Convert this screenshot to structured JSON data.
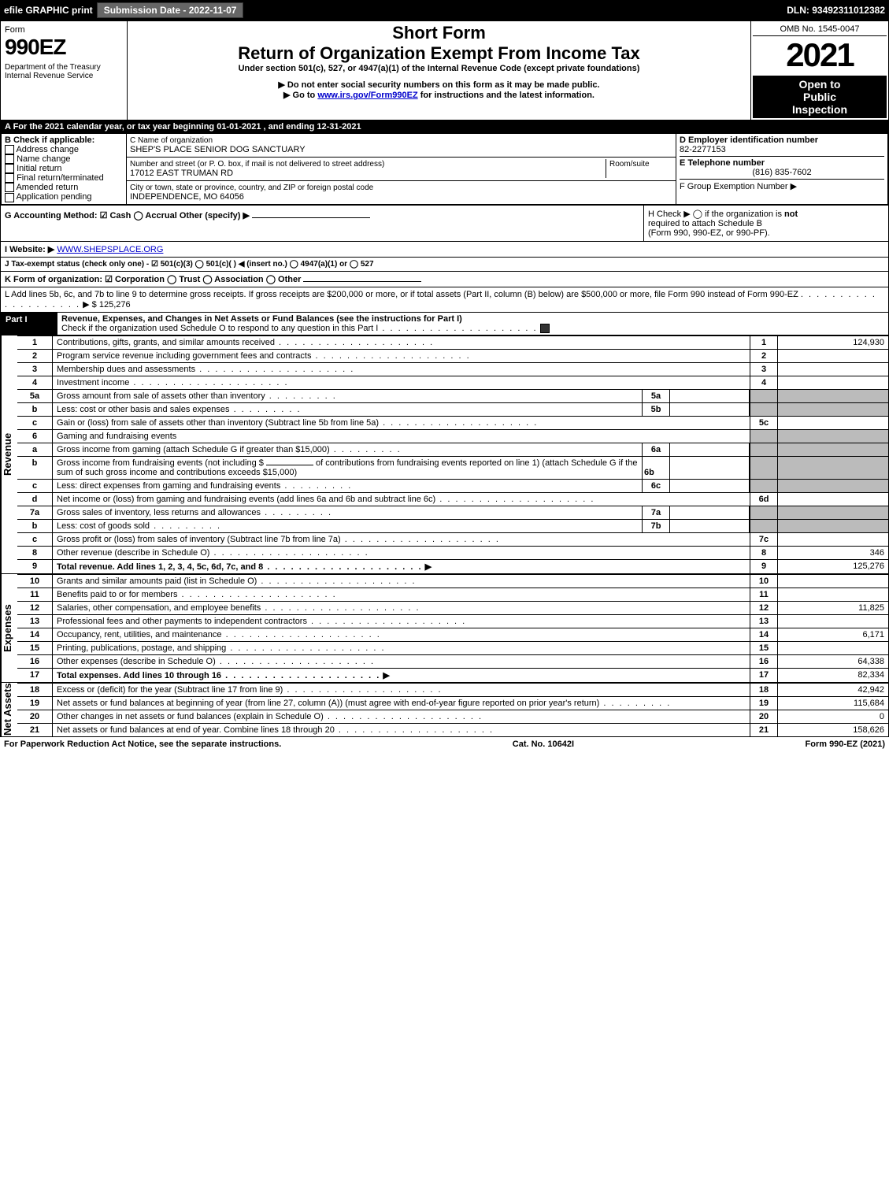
{
  "topbar": {
    "efile": "efile GRAPHIC print",
    "sub_date_label": "Submission Date - 2022-11-07",
    "dln": "DLN: 93492311012382"
  },
  "header": {
    "form_label": "Form",
    "form_num": "990EZ",
    "dept": "Department of the Treasury",
    "irs": "Internal Revenue Service",
    "short_form": "Short Form",
    "title": "Return of Organization Exempt From Income Tax",
    "subtitle": "Under section 501(c), 527, or 4947(a)(1) of the Internal Revenue Code (except private foundations)",
    "note1": "▶ Do not enter social security numbers on this form as it may be made public.",
    "note2_pre": "▶ Go to ",
    "note2_link": "www.irs.gov/Form990EZ",
    "note2_post": " for instructions and the latest information.",
    "omb": "OMB No. 1545-0047",
    "year": "2021",
    "inspect1": "Open to",
    "inspect2": "Public",
    "inspect3": "Inspection"
  },
  "lineA": "A  For the 2021 calendar year, or tax year beginning 01-01-2021 , and ending 12-31-2021",
  "boxB": {
    "label": "B  Check if applicable:",
    "opts": [
      "Address change",
      "Name change",
      "Initial return",
      "Final return/terminated",
      "Amended return",
      "Application pending"
    ]
  },
  "boxC": {
    "label": "C Name of organization",
    "name": "SHEP'S PLACE SENIOR DOG SANCTUARY",
    "street_label": "Number and street (or P. O. box, if mail is not delivered to street address)",
    "street": "17012 EAST TRUMAN RD",
    "room_label": "Room/suite",
    "city_label": "City or town, state or province, country, and ZIP or foreign postal code",
    "city": "INDEPENDENCE, MO  64056"
  },
  "boxD": {
    "label": "D Employer identification number",
    "val": "82-2277153"
  },
  "boxE": {
    "label": "E Telephone number",
    "val": "(816) 835-7602"
  },
  "boxF": {
    "label": "F Group Exemption Number   ▶"
  },
  "lineG": "G Accounting Method:   ☑ Cash   ◯ Accrual   Other (specify) ▶",
  "lineH": {
    "pre": "H  Check ▶  ◯  if the organization is ",
    "not": "not",
    "post1": "required to attach Schedule B",
    "post2": "(Form 990, 990-EZ, or 990-PF)."
  },
  "lineI": {
    "pre": "I Website: ▶",
    "url": "WWW.SHEPSPLACE.ORG"
  },
  "lineJ": "J Tax-exempt status (check only one) -  ☑ 501(c)(3)  ◯ 501(c)(  ) ◀ (insert no.)  ◯ 4947(a)(1) or  ◯ 527",
  "lineK": "K Form of organization:   ☑ Corporation   ◯ Trust   ◯ Association   ◯ Other",
  "lineL": {
    "text": "L Add lines 5b, 6c, and 7b to line 9 to determine gross receipts. If gross receipts are $200,000 or more, or if total assets (Part II, column (B) below) are $500,000 or more, file Form 990 instead of Form 990-EZ",
    "arrow": "▶ $",
    "val": "125,276"
  },
  "part1": {
    "label": "Part I",
    "title": "Revenue, Expenses, and Changes in Net Assets or Fund Balances (see the instructions for Part I)",
    "sub": "Check if the organization used Schedule O to respond to any question in this Part I"
  },
  "sidelabels": {
    "revenue": "Revenue",
    "expenses": "Expenses",
    "netassets": "Net Assets"
  },
  "lines": {
    "l1": {
      "num": "1",
      "desc": "Contributions, gifts, grants, and similar amounts received",
      "code": "1",
      "amt": "124,930"
    },
    "l2": {
      "num": "2",
      "desc": "Program service revenue including government fees and contracts",
      "code": "2",
      "amt": ""
    },
    "l3": {
      "num": "3",
      "desc": "Membership dues and assessments",
      "code": "3",
      "amt": ""
    },
    "l4": {
      "num": "4",
      "desc": "Investment income",
      "code": "4",
      "amt": ""
    },
    "l5a": {
      "num": "5a",
      "desc": "Gross amount from sale of assets other than inventory",
      "sub": "5a"
    },
    "l5b": {
      "num": "b",
      "desc": "Less: cost or other basis and sales expenses",
      "sub": "5b"
    },
    "l5c": {
      "num": "c",
      "desc": "Gain or (loss) from sale of assets other than inventory (Subtract line 5b from line 5a)",
      "code": "5c",
      "amt": ""
    },
    "l6": {
      "num": "6",
      "desc": "Gaming and fundraising events"
    },
    "l6a": {
      "num": "a",
      "desc": "Gross income from gaming (attach Schedule G if greater than $15,000)",
      "sub": "6a"
    },
    "l6b": {
      "num": "b",
      "desc1": "Gross income from fundraising events (not including $",
      "desc2": "of contributions from fundraising events reported on line 1) (attach Schedule G if the sum of such gross income and contributions exceeds $15,000)",
      "sub": "6b"
    },
    "l6c": {
      "num": "c",
      "desc": "Less: direct expenses from gaming and fundraising events",
      "sub": "6c"
    },
    "l6d": {
      "num": "d",
      "desc": "Net income or (loss) from gaming and fundraising events (add lines 6a and 6b and subtract line 6c)",
      "code": "6d",
      "amt": ""
    },
    "l7a": {
      "num": "7a",
      "desc": "Gross sales of inventory, less returns and allowances",
      "sub": "7a"
    },
    "l7b": {
      "num": "b",
      "desc": "Less: cost of goods sold",
      "sub": "7b"
    },
    "l7c": {
      "num": "c",
      "desc": "Gross profit or (loss) from sales of inventory (Subtract line 7b from line 7a)",
      "code": "7c",
      "amt": ""
    },
    "l8": {
      "num": "8",
      "desc": "Other revenue (describe in Schedule O)",
      "code": "8",
      "amt": "346"
    },
    "l9": {
      "num": "9",
      "desc": "Total revenue. Add lines 1, 2, 3, 4, 5c, 6d, 7c, and 8",
      "code": "9",
      "amt": "125,276"
    },
    "l10": {
      "num": "10",
      "desc": "Grants and similar amounts paid (list in Schedule O)",
      "code": "10",
      "amt": ""
    },
    "l11": {
      "num": "11",
      "desc": "Benefits paid to or for members",
      "code": "11",
      "amt": ""
    },
    "l12": {
      "num": "12",
      "desc": "Salaries, other compensation, and employee benefits",
      "code": "12",
      "amt": "11,825"
    },
    "l13": {
      "num": "13",
      "desc": "Professional fees and other payments to independent contractors",
      "code": "13",
      "amt": ""
    },
    "l14": {
      "num": "14",
      "desc": "Occupancy, rent, utilities, and maintenance",
      "code": "14",
      "amt": "6,171"
    },
    "l15": {
      "num": "15",
      "desc": "Printing, publications, postage, and shipping",
      "code": "15",
      "amt": ""
    },
    "l16": {
      "num": "16",
      "desc": "Other expenses (describe in Schedule O)",
      "code": "16",
      "amt": "64,338"
    },
    "l17": {
      "num": "17",
      "desc": "Total expenses. Add lines 10 through 16",
      "code": "17",
      "amt": "82,334"
    },
    "l18": {
      "num": "18",
      "desc": "Excess or (deficit) for the year (Subtract line 17 from line 9)",
      "code": "18",
      "amt": "42,942"
    },
    "l19": {
      "num": "19",
      "desc": "Net assets or fund balances at beginning of year (from line 27, column (A)) (must agree with end-of-year figure reported on prior year's return)",
      "code": "19",
      "amt": "115,684"
    },
    "l20": {
      "num": "20",
      "desc": "Other changes in net assets or fund balances (explain in Schedule O)",
      "code": "20",
      "amt": "0"
    },
    "l21": {
      "num": "21",
      "desc": "Net assets or fund balances at end of year. Combine lines 18 through 20",
      "code": "21",
      "amt": "158,626"
    }
  },
  "footer": {
    "left": "For Paperwork Reduction Act Notice, see the separate instructions.",
    "mid": "Cat. No. 10642I",
    "right_pre": "Form ",
    "right_bold": "990-EZ",
    "right_post": " (2021)"
  }
}
